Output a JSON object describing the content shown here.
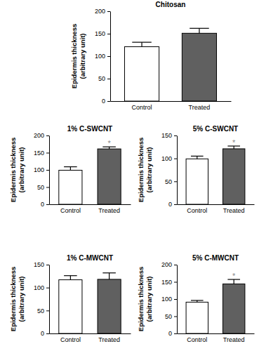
{
  "chart_data": [
    {
      "type": "bar",
      "title": "Chitosan",
      "categories": [
        "Control",
        "Treated"
      ],
      "values": [
        121,
        151
      ],
      "errors": [
        10,
        11
      ],
      "colors": [
        "#ffffff",
        "#606060"
      ],
      "ylim": [
        0,
        200
      ],
      "yticks": [
        0,
        50,
        100,
        150,
        200
      ],
      "ylabel": [
        "Epidermis thickness",
        "(arbitrary unit)"
      ]
    },
    {
      "type": "bar",
      "title": "1% C-SWCNT",
      "categories": [
        "Control",
        "Treated"
      ],
      "values": [
        99,
        161
      ],
      "errors": [
        10,
        6
      ],
      "colors": [
        "#ffffff",
        "#606060"
      ],
      "ylim": [
        0,
        200
      ],
      "yticks": [
        0,
        50,
        100,
        150,
        200
      ],
      "ylabel": [
        "Epidermis thickness",
        "(arbitrary unit)"
      ],
      "annotations": [
        {
          "category": "Treated",
          "text": "*"
        }
      ]
    },
    {
      "type": "bar",
      "title": "5% C-SWCNT",
      "categories": [
        "Control",
        "Treated"
      ],
      "values": [
        99,
        121
      ],
      "errors": [
        6,
        6
      ],
      "colors": [
        "#ffffff",
        "#606060"
      ],
      "ylim": [
        0,
        150
      ],
      "yticks": [
        0,
        50,
        100,
        150
      ],
      "ylabel": [
        "Epidermis thickness",
        "(arbitrary unit)"
      ],
      "annotations": [
        {
          "category": "Treated",
          "text": "*"
        }
      ]
    },
    {
      "type": "bar",
      "title": "1% C-MWCNT",
      "categories": [
        "Control",
        "Treated"
      ],
      "values": [
        117,
        118
      ],
      "errors": [
        9,
        14
      ],
      "colors": [
        "#ffffff",
        "#606060"
      ],
      "ylim": [
        0,
        150
      ],
      "yticks": [
        0,
        50,
        100,
        150
      ],
      "ylabel": [
        "Epidermis thickness",
        "(arbitrary unit)"
      ]
    },
    {
      "type": "bar",
      "title": "5% C-MWCNT",
      "categories": [
        "Control",
        "Treated"
      ],
      "values": [
        91,
        144
      ],
      "errors": [
        5,
        13
      ],
      "colors": [
        "#ffffff",
        "#606060"
      ],
      "ylim": [
        0,
        200
      ],
      "yticks": [
        0,
        50,
        100,
        150,
        200
      ],
      "ylabel": [
        "Epidermis thickness",
        "(arbitrary unit)"
      ],
      "annotations": [
        {
          "category": "Treated",
          "text": "*"
        }
      ]
    }
  ]
}
